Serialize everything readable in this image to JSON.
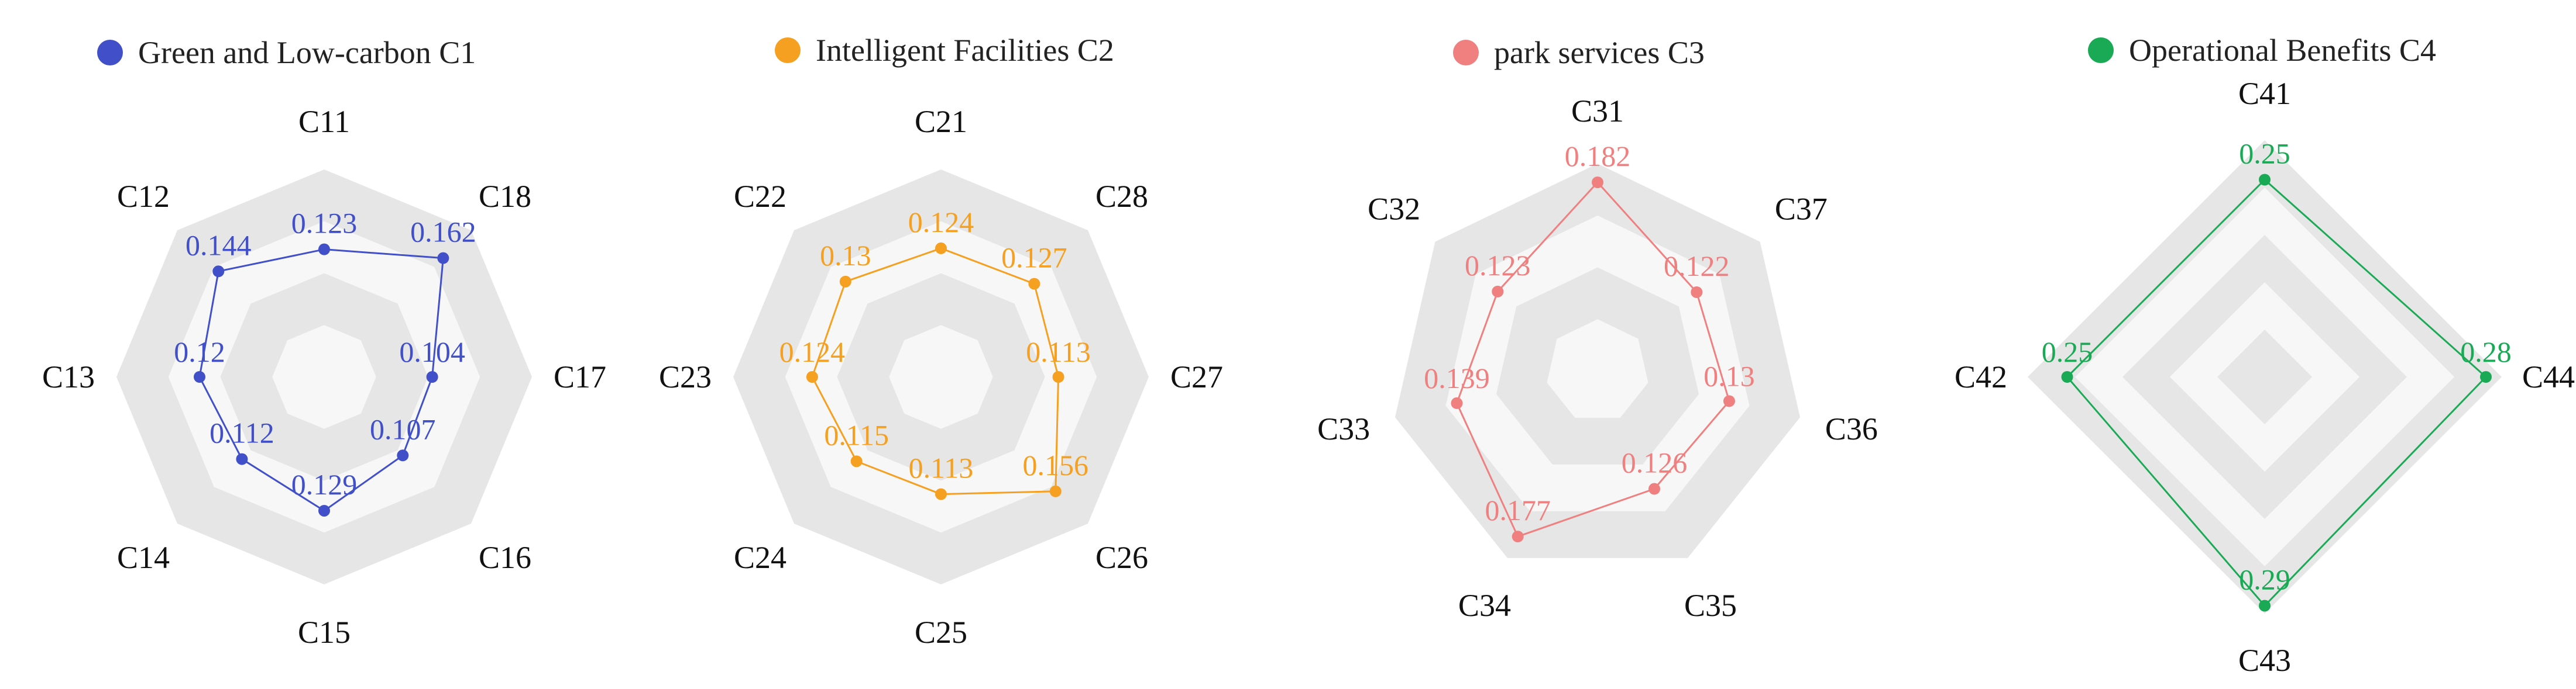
{
  "chart_data": [
    {
      "type": "radar",
      "name": "c1",
      "title": "Green and Low-carbon C1",
      "color": "#4150c8",
      "axes": [
        "C11",
        "C12",
        "C13",
        "C14",
        "C15",
        "C16",
        "C17",
        "C18"
      ],
      "values": [
        0.123,
        0.144,
        0.12,
        0.112,
        0.129,
        0.107,
        0.104,
        0.162
      ],
      "value_labels": [
        "0.123",
        "0.144",
        "0.12",
        "0.112",
        "0.129",
        "0.107",
        "0.104",
        "0.162"
      ],
      "rmax": 0.2,
      "rings": 4
    },
    {
      "type": "radar",
      "name": "c2",
      "title": "Intelligent Facilities C2",
      "color": "#f5a020",
      "axes": [
        "C21",
        "C22",
        "C23",
        "C24",
        "C25",
        "C26",
        "C27",
        "C28"
      ],
      "values": [
        0.124,
        0.13,
        0.124,
        0.115,
        0.113,
        0.156,
        0.113,
        0.127
      ],
      "value_labels": [
        "0.124",
        "0.13",
        "0.124",
        "0.115",
        "0.113",
        "0.156",
        "0.113",
        "0.127"
      ],
      "rmax": 0.2,
      "rings": 4
    },
    {
      "type": "radar",
      "name": "c3",
      "title": "park services C3",
      "color": "#f08080",
      "axes": [
        "C31",
        "C32",
        "C33",
        "C34",
        "C35",
        "C36",
        "C37"
      ],
      "values": [
        0.182,
        0.123,
        0.139,
        0.177,
        0.126,
        0.13,
        0.122
      ],
      "value_labels": [
        "0.182",
        "0.123",
        "0.139",
        "0.177",
        "0.126",
        "0.13",
        "0.122"
      ],
      "rmax": 0.2,
      "rings": 4
    },
    {
      "type": "radar",
      "name": "c4",
      "title": "Operational Benefits C4",
      "color": "#1aaa55",
      "axes": [
        "C41",
        "C42",
        "C43",
        "C44"
      ],
      "values": [
        0.25,
        0.25,
        0.29,
        0.28
      ],
      "value_labels": [
        "0.25",
        "0.25",
        "0.29",
        "0.28"
      ],
      "rmax": 0.3,
      "rings": 5
    }
  ]
}
